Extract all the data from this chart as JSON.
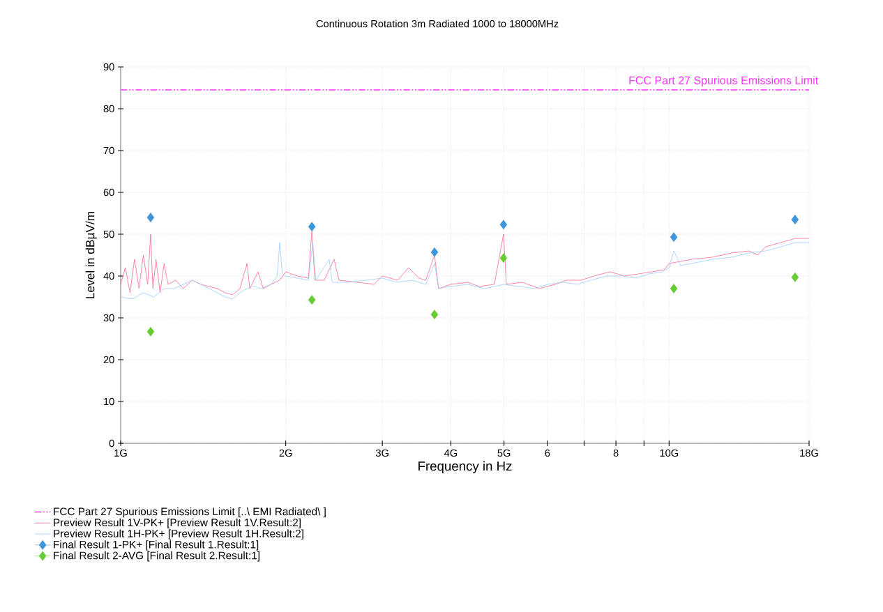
{
  "chart_data": {
    "type": "line",
    "title": "Continuous Rotation 3m Radiated 1000 to 18000MHz",
    "xlabel": "Frequency in Hz",
    "ylabel": "Level in dBµV/m",
    "log": "x",
    "xlim": [
      1,
      18
    ],
    "ylim": [
      0,
      90
    ],
    "xticks": [
      {
        "value": 1,
        "label": "1G"
      },
      {
        "value": 2,
        "label": "2G"
      },
      {
        "value": 3,
        "label": "3G"
      },
      {
        "value": 4,
        "label": "4G"
      },
      {
        "value": 5,
        "label": "5G"
      },
      6,
      {
        "value": 7,
        "label": null
      },
      8,
      {
        "value": 9,
        "label": null
      },
      {
        "value": 10,
        "label": "10G"
      },
      {
        "value": 18,
        "label": "18G"
      }
    ],
    "yticks": [
      0,
      10,
      20,
      30,
      40,
      50,
      60,
      70,
      80,
      90
    ],
    "grid": true,
    "legend": "bottom",
    "annotations": [
      "FCC Part 27 Spurious Emissions Limit"
    ],
    "series": [
      {
        "name": "FCC Part 27 Spurious Emissions Limit   [..\\ EMI Radiated\\ ]",
        "color": "#ff33ff",
        "line_style": "dashed",
        "marker": "none",
        "x": [
          1,
          18
        ],
        "values": [
          84.5,
          84.5
        ]
      },
      {
        "name": "Preview Result 1V-PK+   [Preview Result 1V.Result:2]",
        "color": "#ff6690",
        "line_style": "solid",
        "marker": "none",
        "x": [
          1.0,
          1.02,
          1.04,
          1.06,
          1.08,
          1.1,
          1.12,
          1.134,
          1.145,
          1.16,
          1.18,
          1.2,
          1.22,
          1.26,
          1.3,
          1.35,
          1.4,
          1.45,
          1.5,
          1.55,
          1.6,
          1.65,
          1.7,
          1.72,
          1.78,
          1.82,
          1.88,
          1.95,
          2.0,
          2.1,
          2.2,
          2.232,
          2.26,
          2.35,
          2.45,
          2.5,
          2.7,
          2.9,
          3.0,
          3.2,
          3.35,
          3.5,
          3.6,
          3.735,
          3.8,
          4.0,
          4.3,
          4.5,
          4.8,
          4.99,
          5.05,
          5.4,
          5.8,
          6.2,
          6.5,
          6.9,
          7.3,
          7.8,
          8.3,
          8.8,
          9.3,
          9.8,
          10.0,
          10.5,
          11,
          12,
          13,
          14,
          14.5,
          15,
          16,
          17,
          18
        ],
        "values": [
          38,
          42,
          36,
          44,
          37,
          45,
          38,
          50,
          37,
          44,
          36,
          43,
          38,
          39,
          37,
          39,
          38,
          37.5,
          37,
          36,
          35.5,
          37,
          43,
          37,
          41,
          37,
          38,
          39,
          41,
          40,
          39.5,
          51,
          39,
          39,
          44,
          39,
          38.5,
          38,
          40,
          39,
          42,
          39.5,
          39,
          45,
          37,
          38,
          38.5,
          37.5,
          38,
          50,
          38,
          38.5,
          37,
          38,
          39,
          39,
          40,
          41,
          40,
          40.5,
          41,
          41.5,
          43,
          43.5,
          44,
          44.5,
          45.5,
          46,
          45,
          47,
          48,
          49,
          49
        ]
      },
      {
        "name": "Preview Result 1H-PK+   [Preview Result 1H.Result:2]",
        "color": "#99ccff",
        "line_style": "solid",
        "marker": "none",
        "x": [
          1.0,
          1.05,
          1.1,
          1.15,
          1.2,
          1.25,
          1.3,
          1.35,
          1.4,
          1.45,
          1.5,
          1.55,
          1.6,
          1.65,
          1.7,
          1.75,
          1.8,
          1.88,
          1.93,
          1.95,
          1.97,
          2.0,
          2.1,
          2.2,
          2.24,
          2.27,
          2.4,
          2.43,
          2.6,
          2.8,
          3.0,
          3.2,
          3.4,
          3.6,
          3.735,
          3.8,
          4.0,
          4.3,
          4.6,
          5.0,
          5.3,
          5.7,
          6.0,
          6.4,
          6.8,
          7.2,
          7.7,
          8.2,
          8.7,
          9.2,
          9.7,
          10.0,
          10.2,
          10.5,
          11,
          12,
          13,
          14,
          15,
          16,
          17,
          18
        ],
        "values": [
          35,
          34.5,
          36,
          35,
          37,
          37,
          38,
          39,
          38,
          37,
          36,
          35,
          34.5,
          36,
          37,
          37.5,
          37,
          38,
          40,
          48,
          41,
          40,
          39.5,
          39,
          48,
          39,
          44,
          38.5,
          38.5,
          39,
          39.5,
          38.5,
          39,
          38,
          43,
          37,
          37.5,
          38,
          37,
          38,
          37.5,
          37,
          38,
          38.5,
          38,
          39,
          40,
          40,
          39.5,
          40.5,
          41,
          42,
          46,
          42.5,
          43,
          44,
          44.5,
          45.5,
          46,
          47,
          48,
          48
        ]
      },
      {
        "name": "Final Result 1-PK+   [Final Result 1.Result:1]",
        "type": "scatter",
        "color": "#3d95dc",
        "marker": "diamond",
        "x": [
          1.134,
          2.232,
          3.735,
          4.99,
          10.2,
          16.97
        ],
        "values": [
          54.0,
          51.8,
          45.7,
          52.3,
          49.3,
          53.5
        ]
      },
      {
        "name": "Final Result 2-AVG   [Final Result 2.Result:1]",
        "type": "scatter",
        "color": "#66cc33",
        "marker": "diamond",
        "x": [
          1.134,
          2.232,
          3.735,
          4.99,
          10.2,
          16.97
        ],
        "values": [
          26.7,
          34.3,
          30.8,
          44.3,
          37.0,
          39.7
        ]
      }
    ]
  }
}
